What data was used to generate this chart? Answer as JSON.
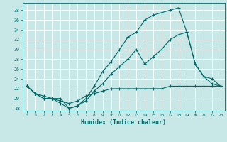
{
  "xlabel": "Humidex (Indice chaleur)",
  "bg_color": "#c8e8e8",
  "grid_color": "#ffffff",
  "line_color": "#006666",
  "xlim": [
    -0.5,
    23.5
  ],
  "ylim": [
    17.5,
    39.5
  ],
  "yticks": [
    18,
    20,
    22,
    24,
    26,
    28,
    30,
    32,
    34,
    36,
    38
  ],
  "xticks": [
    0,
    1,
    2,
    3,
    4,
    5,
    6,
    7,
    8,
    9,
    10,
    11,
    12,
    13,
    14,
    15,
    16,
    17,
    18,
    19,
    20,
    21,
    22,
    23
  ],
  "series1_x": [
    0,
    1,
    2,
    3,
    4,
    5,
    6,
    7,
    8,
    9,
    10,
    11,
    12,
    13,
    14,
    15,
    16,
    17,
    18,
    19,
    20,
    21,
    22,
    23
  ],
  "series1_y": [
    22.5,
    21.0,
    20.0,
    20.0,
    20.0,
    18.0,
    18.5,
    20.0,
    22.5,
    25.5,
    27.5,
    30.0,
    32.5,
    33.5,
    36.0,
    37.0,
    37.5,
    38.0,
    38.5,
    33.5,
    27.0,
    24.5,
    23.0,
    22.5
  ],
  "series2_x": [
    0,
    1,
    2,
    3,
    4,
    5,
    6,
    7,
    8,
    9,
    10,
    11,
    12,
    13,
    14,
    15,
    16,
    17,
    18,
    19,
    20,
    21,
    22,
    23
  ],
  "series2_y": [
    22.5,
    21.0,
    20.0,
    20.0,
    19.0,
    18.0,
    18.5,
    19.5,
    21.5,
    23.0,
    25.0,
    26.5,
    28.0,
    30.0,
    27.0,
    28.5,
    30.0,
    32.0,
    33.0,
    33.5,
    27.0,
    24.5,
    24.0,
    22.5
  ],
  "series3_x": [
    0,
    1,
    2,
    3,
    4,
    5,
    6,
    7,
    8,
    9,
    10,
    11,
    12,
    13,
    14,
    15,
    16,
    17,
    18,
    19,
    20,
    21,
    22,
    23
  ],
  "series3_y": [
    22.5,
    21.0,
    20.5,
    20.0,
    19.5,
    19.0,
    19.5,
    20.5,
    21.0,
    21.5,
    22.0,
    22.0,
    22.0,
    22.0,
    22.0,
    22.0,
    22.0,
    22.5,
    22.5,
    22.5,
    22.5,
    22.5,
    22.5,
    22.5
  ]
}
